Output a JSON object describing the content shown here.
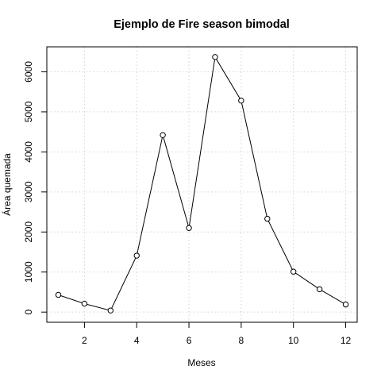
{
  "chart_data": {
    "type": "line",
    "title": "Ejemplo de Fire season bimodal",
    "xlabel": "Meses",
    "ylabel": "Área quemada",
    "xlim": [
      0.56,
      12.44
    ],
    "ylim": [
      -254,
      6624
    ],
    "x_ticks": [
      2,
      4,
      6,
      8,
      10,
      12
    ],
    "y_ticks": [
      0,
      1000,
      2000,
      3000,
      4000,
      5000,
      6000
    ],
    "grid": true,
    "series": [
      {
        "x": [
          1,
          2,
          3,
          4,
          5,
          6,
          7,
          8,
          9,
          10,
          11,
          12
        ],
        "values": [
          430,
          210,
          40,
          1410,
          4420,
          2100,
          6370,
          5280,
          2330,
          1010,
          570,
          190
        ]
      }
    ]
  }
}
